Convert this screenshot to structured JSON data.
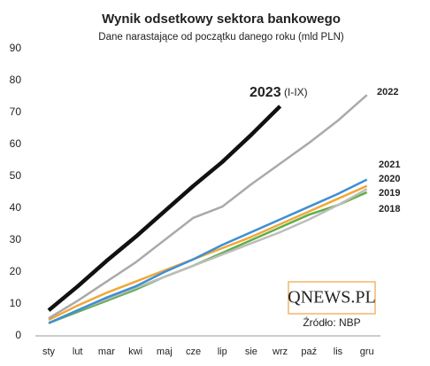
{
  "chart_data": {
    "type": "line",
    "title": "Wynik odsetkowy sektora bankowego",
    "subtitle": "Dane narastające od początku danego roku (mld PLN)",
    "annotation": "(I-IX)",
    "source": "Źródło: NBP",
    "logo": "QNEWS.PL",
    "categories": [
      "sty",
      "lut",
      "mar",
      "kwi",
      "maj",
      "cze",
      "lip",
      "sie",
      "wrz",
      "paź",
      "lis",
      "gru"
    ],
    "ylim": [
      0,
      90
    ],
    "yticks": [
      0,
      10,
      20,
      30,
      40,
      50,
      60,
      70,
      80,
      90
    ],
    "grid": false,
    "series": [
      {
        "name": "2018",
        "color": "#5fae46",
        "values": [
          4,
          7.5,
          11,
          14.5,
          18.5,
          22,
          26,
          30,
          34,
          38,
          41,
          45
        ]
      },
      {
        "name": "2019",
        "color": "#bdbdbd",
        "values": [
          4,
          8,
          11.5,
          15,
          18.5,
          22,
          25.5,
          29,
          32.5,
          36.5,
          41,
          46
        ]
      },
      {
        "name": "2020",
        "color": "#f0a838",
        "values": [
          5,
          9.5,
          13.5,
          17,
          20.5,
          24,
          27.5,
          31,
          35,
          39,
          43,
          47
        ]
      },
      {
        "name": "2021",
        "color": "#3d8fd6",
        "values": [
          4,
          8,
          12,
          15.5,
          20,
          24,
          28.5,
          32.5,
          36.5,
          40.5,
          44.5,
          49
        ]
      },
      {
        "name": "2022",
        "color": "#aaaaaa",
        "values": [
          5.5,
          11,
          17,
          23,
          30,
          37,
          40.5,
          47.5,
          54,
          60.5,
          67.5,
          75.5
        ]
      },
      {
        "name": "2023",
        "color": "#111111",
        "values": [
          8,
          15.5,
          23.5,
          31,
          39,
          47,
          54.5,
          63,
          72,
          null,
          null,
          null
        ]
      }
    ]
  }
}
